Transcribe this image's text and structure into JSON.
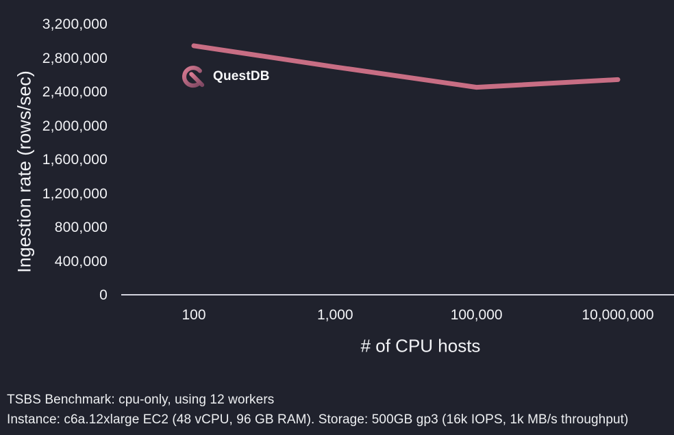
{
  "figure": {
    "background": "#20222d",
    "text_color": "#f2f3f6",
    "axis_line_color": "#d4d5df"
  },
  "chart_data": {
    "type": "line",
    "title": "",
    "xlabel": "# of CPU hosts",
    "ylabel": "Ingestion rate (rows/sec)",
    "x_axis_type": "category",
    "categories": [
      "100",
      "1,000",
      "100,000",
      "10,000,000"
    ],
    "series": [
      {
        "name": "QuestDB",
        "values": [
          2950000,
          2700000,
          2460000,
          2550000
        ],
        "color": "#c86e84",
        "line_width": 7
      }
    ],
    "ylim": [
      0,
      3200000
    ],
    "yticks": [
      0,
      400000,
      800000,
      1200000,
      1600000,
      2000000,
      2400000,
      2800000,
      3200000
    ],
    "ytick_labels": [
      "0",
      "400,000",
      "800,000",
      "1,200,000",
      "1,600,000",
      "2,000,000",
      "2,400,000",
      "2,800,000",
      "3,200,000"
    ],
    "grid": false,
    "legend": {
      "label": "QuestDB",
      "position": "inside-top-left",
      "icon": "questdb-logo-icon"
    }
  },
  "logo": {
    "name": "QuestDB",
    "gradient_top": "#d97b92",
    "gradient_bottom": "#7e4762"
  },
  "footer": {
    "line1": "TSBS Benchmark: cpu-only, using 12 workers",
    "line2": "Instance: c6a.12xlarge EC2 (48 vCPU, 96 GB RAM). Storage: 500GB gp3 (16k IOPS, 1k MB/s throughput)"
  }
}
